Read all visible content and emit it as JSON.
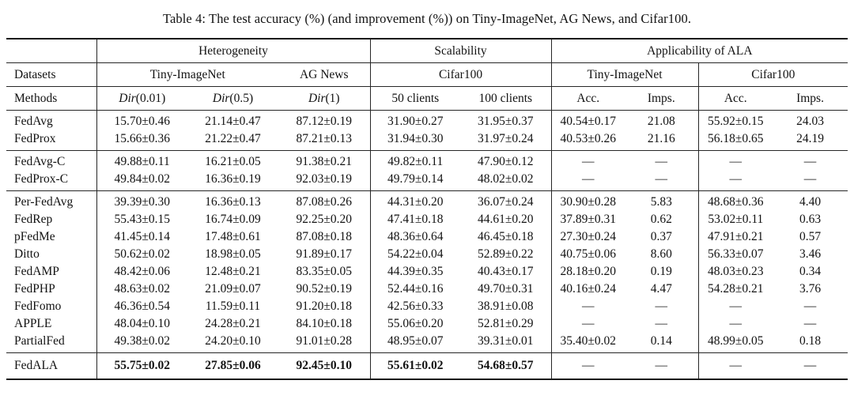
{
  "title": "Table 4: The test accuracy (%) (and improvement (%)) on Tiny-ImageNet, AG News, and Cifar100.",
  "table": {
    "group_headers": {
      "heterogeneity": "Heterogeneity",
      "scalability": "Scalability",
      "applicability": "Applicability of ALA"
    },
    "dataset_row": {
      "label": "Datasets",
      "het_tiny": "Tiny-ImageNet",
      "het_agnews": "AG News",
      "scal_cifar": "Cifar100",
      "appl_tiny": "Tiny-ImageNet",
      "appl_cifar": "Cifar100"
    },
    "method_row": {
      "label": "Methods",
      "dir1": {
        "prefix": "Dir",
        "args": "(0.01)"
      },
      "dir2": {
        "prefix": "Dir",
        "args": "(0.5)"
      },
      "dir3": {
        "prefix": "Dir",
        "args": "(1)"
      },
      "clients50": "50 clients",
      "clients100": "100 clients",
      "acc1": "Acc.",
      "imps1": "Imps.",
      "acc2": "Acc.",
      "imps2": "Imps."
    },
    "missing_marker": "—",
    "groups": [
      {
        "rows": [
          {
            "method": "FedAvg",
            "values": [
              "15.70±0.46",
              "21.14±0.47",
              "87.12±0.19",
              "31.90±0.27",
              "31.95±0.37",
              "40.54±0.17",
              "21.08",
              "55.92±0.15",
              "24.03"
            ]
          },
          {
            "method": "FedProx",
            "values": [
              "15.66±0.36",
              "21.22±0.47",
              "87.21±0.13",
              "31.94±0.30",
              "31.97±0.24",
              "40.53±0.26",
              "21.16",
              "56.18±0.65",
              "24.19"
            ]
          }
        ]
      },
      {
        "rows": [
          {
            "method": "FedAvg-C",
            "values": [
              "49.88±0.11",
              "16.21±0.05",
              "91.38±0.21",
              "49.82±0.11",
              "47.90±0.12",
              "—",
              "—",
              "—",
              "—"
            ]
          },
          {
            "method": "FedProx-C",
            "values": [
              "49.84±0.02",
              "16.36±0.19",
              "92.03±0.19",
              "49.79±0.14",
              "48.02±0.02",
              "—",
              "—",
              "—",
              "—"
            ]
          }
        ]
      },
      {
        "rows": [
          {
            "method": "Per-FedAvg",
            "values": [
              "39.39±0.30",
              "16.36±0.13",
              "87.08±0.26",
              "44.31±0.20",
              "36.07±0.24",
              "30.90±0.28",
              "5.83",
              "48.68±0.36",
              "4.40"
            ]
          },
          {
            "method": "FedRep",
            "values": [
              "55.43±0.15",
              "16.74±0.09",
              "92.25±0.20",
              "47.41±0.18",
              "44.61±0.20",
              "37.89±0.31",
              "0.62",
              "53.02±0.11",
              "0.63"
            ]
          },
          {
            "method": "pFedMe",
            "values": [
              "41.45±0.14",
              "17.48±0.61",
              "87.08±0.18",
              "48.36±0.64",
              "46.45±0.18",
              "27.30±0.24",
              "0.37",
              "47.91±0.21",
              "0.57"
            ]
          },
          {
            "method": "Ditto",
            "values": [
              "50.62±0.02",
              "18.98±0.05",
              "91.89±0.17",
              "54.22±0.04",
              "52.89±0.22",
              "40.75±0.06",
              "8.60",
              "56.33±0.07",
              "3.46"
            ]
          },
          {
            "method": "FedAMP",
            "values": [
              "48.42±0.06",
              "12.48±0.21",
              "83.35±0.05",
              "44.39±0.35",
              "40.43±0.17",
              "28.18±0.20",
              "0.19",
              "48.03±0.23",
              "0.34"
            ]
          },
          {
            "method": "FedPHP",
            "values": [
              "48.63±0.02",
              "21.09±0.07",
              "90.52±0.19",
              "52.44±0.16",
              "49.70±0.31",
              "40.16±0.24",
              "4.47",
              "54.28±0.21",
              "3.76"
            ]
          },
          {
            "method": "FedFomo",
            "values": [
              "46.36±0.54",
              "11.59±0.11",
              "91.20±0.18",
              "42.56±0.33",
              "38.91±0.08",
              "—",
              "—",
              "—",
              "—"
            ]
          },
          {
            "method": "APPLE",
            "values": [
              "48.04±0.10",
              "24.28±0.21",
              "84.10±0.18",
              "55.06±0.20",
              "52.81±0.29",
              "—",
              "—",
              "—",
              "—"
            ]
          },
          {
            "method": "PartialFed",
            "values": [
              "49.38±0.02",
              "24.20±0.10",
              "91.01±0.28",
              "48.95±0.07",
              "39.31±0.01",
              "35.40±0.02",
              "0.14",
              "48.99±0.05",
              "0.18"
            ]
          }
        ]
      },
      {
        "final": true,
        "rows": [
          {
            "method": "FedALA",
            "bold_values": true,
            "values": [
              "55.75±0.02",
              "27.85±0.06",
              "92.45±0.10",
              "55.61±0.02",
              "54.68±0.57",
              "—",
              "—",
              "—",
              "—"
            ]
          }
        ]
      }
    ]
  }
}
